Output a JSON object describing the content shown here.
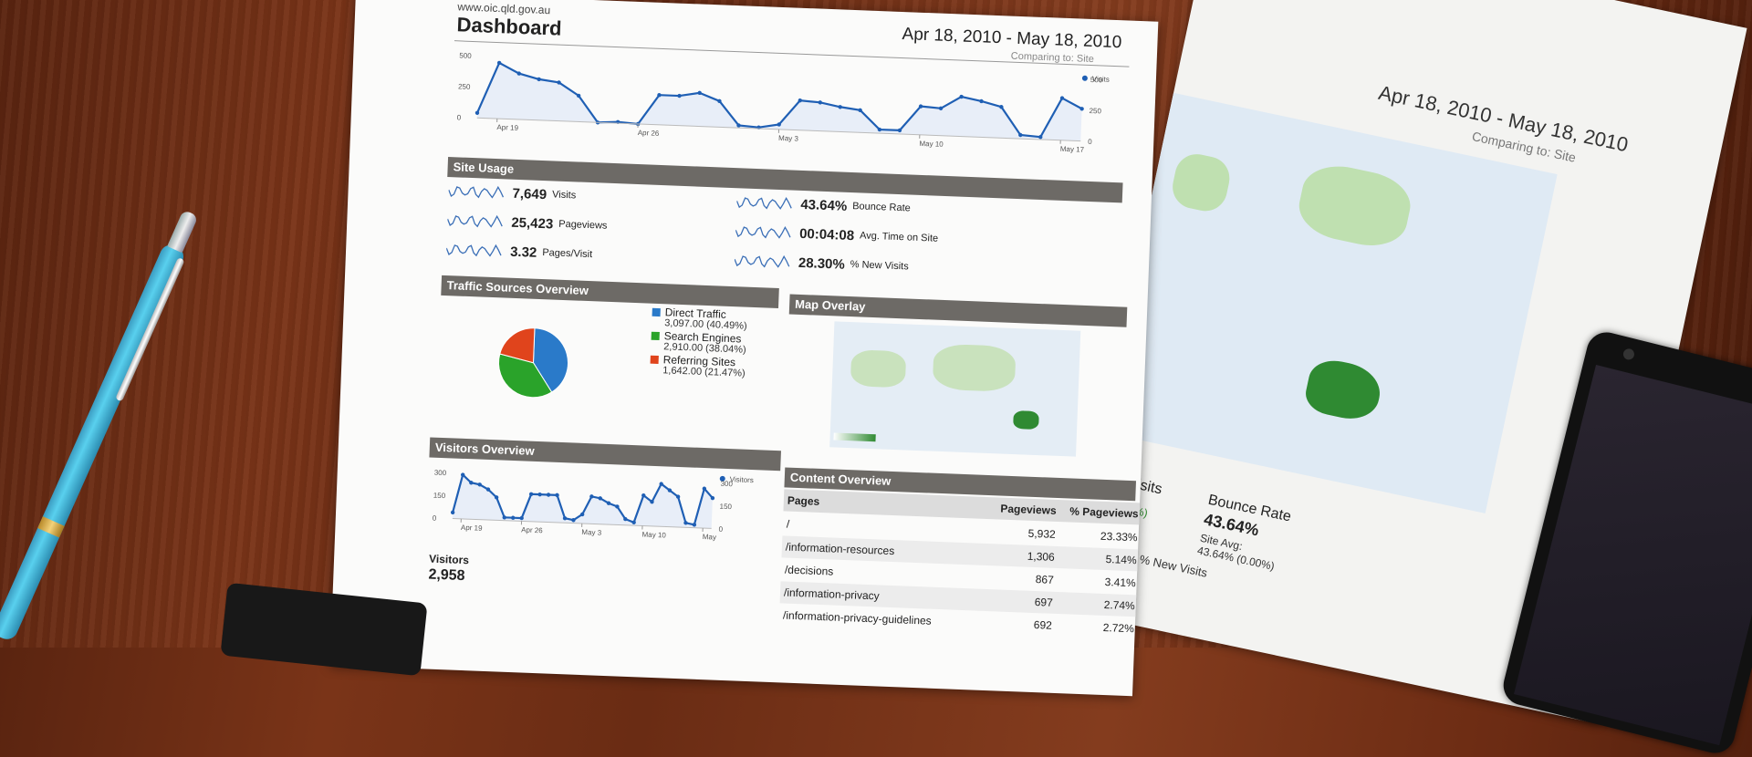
{
  "dashboard": {
    "url": "www.oic.qld.gov.au",
    "title": "Dashboard",
    "date_range": "Apr 18, 2010 - May 18, 2010",
    "comparing": "Comparing to: Site",
    "visits_legend": "Visits",
    "y_ticks_left": [
      "500",
      "250",
      "0"
    ],
    "y_ticks_right": [
      "500",
      "250",
      "0"
    ],
    "x_ticks": [
      "Apr 19",
      "Apr 26",
      "May 3",
      "May 10",
      "May 17"
    ]
  },
  "chart_data": [
    {
      "type": "line",
      "x": [
        "Apr 18",
        "Apr 19",
        "Apr 20",
        "Apr 21",
        "Apr 22",
        "Apr 23",
        "Apr 24",
        "Apr 25",
        "Apr 26",
        "Apr 27",
        "Apr 28",
        "Apr 29",
        "Apr 30",
        "May 1",
        "May 2",
        "May 3",
        "May 4",
        "May 5",
        "May 6",
        "May 7",
        "May 8",
        "May 9",
        "May 10",
        "May 11",
        "May 12",
        "May 13",
        "May 14",
        "May 15",
        "May 16",
        "May 17",
        "May 18"
      ],
      "series": [
        {
          "name": "Visits",
          "values": [
            40,
            450,
            370,
            330,
            310,
            210,
            0,
            10,
            0,
            240,
            240,
            270,
            210,
            20,
            10,
            40,
            240,
            230,
            200,
            180,
            30,
            30,
            230,
            220,
            320,
            290,
            250,
            30,
            20,
            340,
            260
          ]
        }
      ],
      "ylim": [
        0,
        500
      ]
    },
    {
      "type": "pie",
      "categories": [
        "Direct Traffic",
        "Search Engines",
        "Referring Sites"
      ],
      "values": [
        40.49,
        38.04,
        21.47
      ],
      "colors": [
        "#2a7ac9",
        "#2aa32a",
        "#e0441c"
      ]
    },
    {
      "type": "line",
      "x": [
        "Apr 18",
        "Apr 19",
        "Apr 20",
        "Apr 21",
        "Apr 22",
        "Apr 23",
        "Apr 24",
        "Apr 25",
        "Apr 26",
        "Apr 27",
        "Apr 28",
        "Apr 29",
        "Apr 30",
        "May 1",
        "May 2",
        "May 3",
        "May 4",
        "May 5",
        "May 6",
        "May 7",
        "May 8",
        "May 9",
        "May 10",
        "May 11",
        "May 12",
        "May 13",
        "May 14",
        "May 15",
        "May 16",
        "May 17",
        "May 18"
      ],
      "series": [
        {
          "name": "Visitors",
          "values": [
            40,
            290,
            240,
            230,
            200,
            150,
            20,
            20,
            20,
            180,
            180,
            180,
            180,
            30,
            20,
            60,
            180,
            170,
            140,
            120,
            40,
            20,
            200,
            160,
            280,
            240,
            200,
            30,
            20,
            260,
            200
          ]
        }
      ],
      "ylim": [
        0,
        300
      ]
    }
  ],
  "site_usage": {
    "title": "Site Usage",
    "left": [
      {
        "value": "7,649",
        "label": "Visits"
      },
      {
        "value": "25,423",
        "label": "Pageviews"
      },
      {
        "value": "3.32",
        "label": "Pages/Visit"
      }
    ],
    "right": [
      {
        "value": "43.64%",
        "label": "Bounce Rate"
      },
      {
        "value": "00:04:08",
        "label": "Avg. Time on Site"
      },
      {
        "value": "28.30%",
        "label": "% New Visits"
      }
    ]
  },
  "traffic_sources": {
    "title": "Traffic Sources Overview",
    "items": [
      {
        "name": "Direct Traffic",
        "detail": "3,097.00 (40.49%)"
      },
      {
        "name": "Search Engines",
        "detail": "2,910.00 (38.04%)"
      },
      {
        "name": "Referring Sites",
        "detail": "1,642.00 (21.47%)"
      }
    ]
  },
  "map_overlay": {
    "title": "Map Overlay"
  },
  "visitors_overview": {
    "title": "Visitors Overview",
    "legend": "Visitors",
    "y_ticks_left": [
      "300",
      "150",
      "0"
    ],
    "y_ticks_right": [
      "300",
      "150",
      "0"
    ],
    "x_ticks": [
      "Apr 19",
      "Apr 26",
      "May 3",
      "May 10",
      "May"
    ],
    "total_label": "Visitors",
    "total_value": "2,958"
  },
  "content_overview": {
    "title": "Content Overview",
    "headers": [
      "Pages",
      "Pageviews",
      "% Pageviews"
    ],
    "rows": [
      [
        "/",
        "5,932",
        "23.33%"
      ],
      [
        "/information-resources",
        "1,306",
        "5.14%"
      ],
      [
        "/decisions",
        "867",
        "3.41%"
      ],
      [
        "/information-privacy",
        "697",
        "2.74%"
      ],
      [
        "/information-privacy-guidelines",
        "692",
        "2.72%"
      ]
    ]
  },
  "second_sheet": {
    "date_range": "Apr 18, 2010 - May 18, 2010",
    "comparing": "Comparing to: Site",
    "visits_label": "Visits",
    "bounce_rate_label": "Bounce Rate",
    "bounce_rate_value": "43.64%",
    "site_avg_label": "Site Avg:",
    "site_avg_value": "43.64% (0.00%)",
    "pct_fragment": "09%)",
    "new_visits_label": "% New Visits"
  }
}
